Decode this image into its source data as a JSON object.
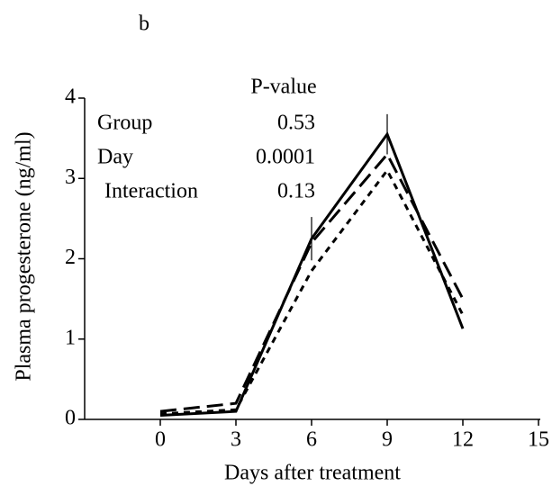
{
  "chart_data": {
    "type": "line",
    "panel_label": "b",
    "xlabel": "Days after treatment",
    "ylabel": "Plasma progesterone (ng/ml)",
    "x": [
      0,
      3,
      6,
      9,
      12
    ],
    "series": [
      {
        "color": "#000000",
        "dash": "solid",
        "values": [
          0.05,
          0.1,
          2.25,
          3.55,
          1.13
        ],
        "errors": [
          null,
          null,
          0.27,
          0.25,
          null
        ]
      },
      {
        "color": "#000000",
        "dash": "long",
        "values": [
          0.1,
          0.2,
          2.2,
          3.3,
          1.5
        ]
      },
      {
        "color": "#000000",
        "dash": "short",
        "values": [
          0.07,
          0.12,
          1.85,
          3.1,
          1.3
        ]
      }
    ],
    "xlim": [
      -3,
      15
    ],
    "xticks": [
      0,
      3,
      6,
      9,
      12,
      15
    ],
    "ylim": [
      0,
      4
    ],
    "yticks": [
      0,
      1,
      2,
      3,
      4
    ],
    "annotation": {
      "header": "P-value",
      "rows": [
        {
          "label": "Group",
          "value": 0.53
        },
        {
          "label": "Day",
          "value": 0.0001
        },
        {
          "label": "Interaction",
          "value": 0.13
        }
      ]
    }
  }
}
